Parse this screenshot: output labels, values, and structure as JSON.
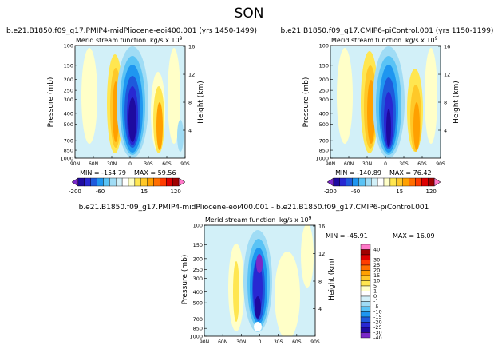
{
  "title": "SON",
  "colors": {
    "-40": "#7a28c8",
    "-30": "#1e0aa0",
    "-25": "#2828d2",
    "-20": "#1e5adc",
    "-15": "#1e96f0",
    "-10": "#5ac3f5",
    "-5": "#a0dcf5",
    "-1": "#d2f0f8",
    "0": "#ffffff",
    "1": "#ffffc8",
    "5": "#ffe650",
    "10": "#ffc828",
    "15": "#ffa000",
    "20": "#ff6e00",
    "25": "#ff3c00",
    "30": "#dc0000",
    "35": "#a00000",
    "40": "#ff78c8"
  },
  "chart_data": [
    {
      "type": "heatmap",
      "panel_title": "b.e21.B1850.f09_g17.PMIP4-midPliocene-eoi400.001  (yrs 1450-1499)",
      "subtitle_left": "Merid stream function",
      "units": "kg/s x 10",
      "units_exp": "9",
      "ylabel": "Pressure (mb)",
      "ylabel_right": "Height (km)",
      "x_ticks": [
        "90N",
        "60N",
        "30N",
        "0",
        "30S",
        "60S",
        "90S"
      ],
      "y_ticks": [
        "100",
        "150",
        "200",
        "250",
        "300",
        "400",
        "500",
        "700",
        "850",
        "1000"
      ],
      "y_ticks_right": [
        "16",
        "12",
        "8",
        "4"
      ],
      "min_label": "MIN = -154.79",
      "max_label": "MAX = 59.56",
      "colorbar": {
        "levels": [
          -200,
          -160,
          -120,
          -80,
          -60,
          -40,
          -20,
          -10,
          -5,
          5,
          10,
          15,
          20,
          40,
          60,
          80,
          120,
          160,
          200
        ],
        "labels": [
          "-200",
          "-60",
          "15",
          "120"
        ],
        "colors": [
          "#7a28c8",
          "#1e0aa0",
          "#2828d2",
          "#1e5adc",
          "#1e96f0",
          "#5ac3f5",
          "#a0dcf5",
          "#d2f0f8",
          "#ffffff",
          "#ffffc8",
          "#ffe650",
          "#ffc828",
          "#ffa000",
          "#ff6e00",
          "#ff3c00",
          "#dc0000",
          "#a00000",
          "#ff78c8"
        ]
      },
      "cells": [
        {
          "lat_from": 32,
          "lat_to": 20,
          "lev": 15
        },
        {
          "lat_from": 3,
          "lat_to": -10,
          "lev": -150
        },
        {
          "lat_from": -25,
          "lat_to": -40,
          "lev": 15
        },
        {
          "lat_from": -60,
          "lat_to": -70,
          "lev": 15
        }
      ]
    },
    {
      "type": "heatmap",
      "panel_title": "b.e21.B1850.f09_g17.CMIP6-piControl.001  (yrs 1150-1199)",
      "subtitle_left": "Merid stream function",
      "units": "kg/s x 10",
      "units_exp": "9",
      "ylabel": "Pressure (mb)",
      "ylabel_right": "Height (km)",
      "x_ticks": [
        "90N",
        "60N",
        "30N",
        "0",
        "30S",
        "60S",
        "90S"
      ],
      "y_ticks": [
        "100",
        "150",
        "200",
        "250",
        "300",
        "400",
        "500",
        "700",
        "850",
        "1000"
      ],
      "y_ticks_right": [
        "16",
        "12",
        "8",
        "4"
      ],
      "min_label": "MIN = -140.89",
      "max_label": "MAX = 76.42",
      "colorbar": {
        "levels": [
          -200,
          -160,
          -120,
          -80,
          -60,
          -40,
          -20,
          -10,
          -5,
          5,
          10,
          15,
          20,
          40,
          60,
          80,
          120,
          160,
          200
        ],
        "labels": [
          "-200",
          "-60",
          "15",
          "120"
        ]
      }
    },
    {
      "type": "heatmap",
      "panel_title": "b.e21.B1850.f09_g17.PMIP4-midPliocene-eoi400.001  -  b.e21.B1850.f09_g17.CMIP6-piControl.001",
      "subtitle_left": "Merid stream function",
      "units": "kg/s x 10",
      "units_exp": "9",
      "ylabel": "Pressure (mb)",
      "ylabel_right": "Height (km)",
      "x_ticks": [
        "90N",
        "60N",
        "30N",
        "0",
        "30S",
        "60S",
        "90S"
      ],
      "y_ticks": [
        "100",
        "150",
        "200",
        "250",
        "300",
        "400",
        "500",
        "700",
        "850",
        "1000"
      ],
      "y_ticks_right": [
        "16",
        "12",
        "8",
        "4"
      ],
      "min_label": "MIN = -45.91",
      "max_label": "MAX = 16.09",
      "colorbar": {
        "levels": [
          40,
          35,
          30,
          25,
          20,
          15,
          10,
          5,
          1,
          0,
          -1,
          -5,
          -10,
          -15,
          -20,
          -25,
          -30,
          -40
        ],
        "labels": [
          "40",
          "30",
          "25",
          "20",
          "15",
          "10",
          "5",
          "1",
          "0",
          "-1",
          "-5",
          "-10",
          "-15",
          "-20",
          "-25",
          "-30",
          "-40"
        ]
      }
    }
  ]
}
